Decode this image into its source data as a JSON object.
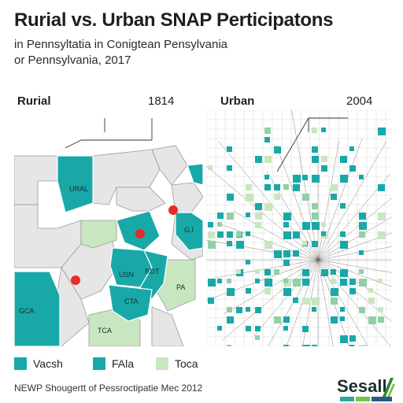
{
  "title": "Rurial vs. Urban SNAP Perticipatons",
  "subtitle_line1": "in Pennsyltatia in Conigtean Pensylvania",
  "subtitle_line2": "or Pennsylvania, 2017",
  "rural": {
    "label": "Rurial",
    "value": "1814",
    "region_labels": [
      "URAL",
      "G.I",
      "USN",
      "RDT",
      "CTA",
      "GCA",
      "TCA",
      "PA"
    ]
  },
  "urban": {
    "label": "Urban",
    "value": "2004"
  },
  "legend": [
    {
      "label": "Vacsh",
      "color": "#19a8a8"
    },
    {
      "label": "FAla",
      "color": "#19a8a8"
    },
    {
      "label": "Toca",
      "color": "#c8e6c0"
    }
  ],
  "footer": "NEWP Shougertt of Pessroctipatie Mec 2012",
  "logo_text": "Sesall",
  "colors": {
    "teal": "#19a8a8",
    "light_green": "#c8e6c0",
    "grey": "#e6e6e6",
    "red": "#e82a2a"
  }
}
